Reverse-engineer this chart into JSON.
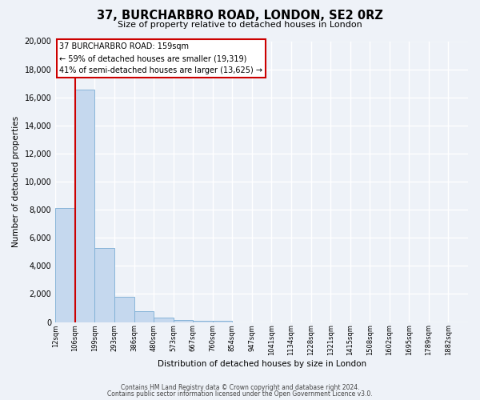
{
  "title": "37, BURCHARBRO ROAD, LONDON, SE2 0RZ",
  "subtitle": "Size of property relative to detached houses in London",
  "xlabel": "Distribution of detached houses by size in London",
  "ylabel": "Number of detached properties",
  "bar_values": [
    8100,
    16550,
    5300,
    1800,
    750,
    300,
    150,
    100,
    100,
    0,
    0,
    0,
    0,
    0,
    0,
    0,
    0,
    0,
    0,
    0
  ],
  "categories": [
    "12sqm",
    "106sqm",
    "199sqm",
    "293sqm",
    "386sqm",
    "480sqm",
    "573sqm",
    "667sqm",
    "760sqm",
    "854sqm",
    "947sqm",
    "1041sqm",
    "1134sqm",
    "1228sqm",
    "1321sqm",
    "1415sqm",
    "1508sqm",
    "1602sqm",
    "1695sqm",
    "1789sqm",
    "1882sqm"
  ],
  "bar_color": "#c5d8ee",
  "bar_edge_color": "#7aadd4",
  "vline_x": 1,
  "vline_color": "#cc0000",
  "annotation_title": "37 BURCHARBRO ROAD: 159sqm",
  "annotation_line1": "← 59% of detached houses are smaller (19,319)",
  "annotation_line2": "41% of semi-detached houses are larger (13,625) →",
  "annotation_box_facecolor": "#ffffff",
  "annotation_box_edge": "#cc0000",
  "ylim": [
    0,
    20000
  ],
  "yticks": [
    0,
    2000,
    4000,
    6000,
    8000,
    10000,
    12000,
    14000,
    16000,
    18000,
    20000
  ],
  "background_color": "#eef2f8",
  "grid_color": "#ffffff",
  "footer1": "Contains HM Land Registry data © Crown copyright and database right 2024.",
  "footer2": "Contains public sector information licensed under the Open Government Licence v3.0."
}
